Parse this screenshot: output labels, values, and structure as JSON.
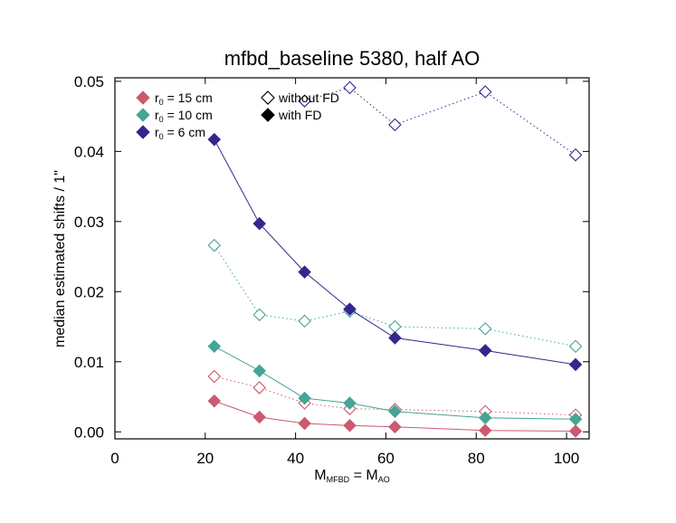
{
  "chart_data": {
    "type": "line",
    "title": "mfbd_baseline 5380, half AO",
    "xlabel": {
      "main": "M",
      "sub": "MFBD",
      "eq": " = M",
      "sub2": "AO"
    },
    "ylabel": "median estimated shifts / 1\"",
    "xlim": [
      0,
      105
    ],
    "ylim": [
      -0.001,
      0.0505
    ],
    "xticks": [
      0,
      20,
      40,
      60,
      80,
      100
    ],
    "xtick_labels": [
      "0",
      "20",
      "40",
      "60",
      "80",
      "100"
    ],
    "yticks": [
      0.0,
      0.01,
      0.02,
      0.03,
      0.04,
      0.05
    ],
    "ytick_labels": [
      "0.00",
      "0.01",
      "0.02",
      "0.03",
      "0.04",
      "0.05"
    ],
    "grid": false,
    "legend_position": "top-left",
    "legend": {
      "series": [
        {
          "main": "r",
          "sub": "0",
          "rest": " = 15 cm",
          "color": "#cc5a6e"
        },
        {
          "main": "r",
          "sub": "0",
          "rest": " = 10 cm",
          "color": "#45a596"
        },
        {
          "main": "r",
          "sub": "0",
          "rest": " = 6 cm",
          "color": "#33268c"
        }
      ],
      "markers": [
        {
          "label": "without FD",
          "filled": false
        },
        {
          "label": "with FD",
          "filled": true
        }
      ]
    },
    "x": [
      22,
      32,
      42,
      52,
      62,
      82,
      102
    ],
    "series": [
      {
        "r0": "15",
        "fd": false,
        "color": "#cc5a6e",
        "values": [
          0.0079,
          0.0063,
          0.0041,
          0.0033,
          0.0032,
          0.0029,
          0.0024
        ]
      },
      {
        "r0": "15",
        "fd": true,
        "color": "#cc5a6e",
        "values": [
          0.0044,
          0.0021,
          0.0012,
          0.0009,
          0.0007,
          0.0002,
          0.0001
        ]
      },
      {
        "r0": "10",
        "fd": false,
        "color": "#45a596",
        "values": [
          0.0266,
          0.0167,
          0.0158,
          0.0172,
          0.015,
          0.0147,
          0.0122
        ]
      },
      {
        "r0": "10",
        "fd": true,
        "color": "#45a596",
        "values": [
          0.0122,
          0.0087,
          0.0048,
          0.0041,
          0.0029,
          0.002,
          0.0018
        ]
      },
      {
        "r0": "6",
        "fd": false,
        "color": "#33268c",
        "values": [
          null,
          null,
          0.0472,
          0.0491,
          0.0438,
          0.0485,
          0.0395
        ]
      },
      {
        "r0": "6",
        "fd": true,
        "color": "#33268c",
        "values": [
          0.0417,
          0.0297,
          0.0228,
          0.0175,
          0.0134,
          0.0116,
          0.0096
        ]
      }
    ]
  }
}
